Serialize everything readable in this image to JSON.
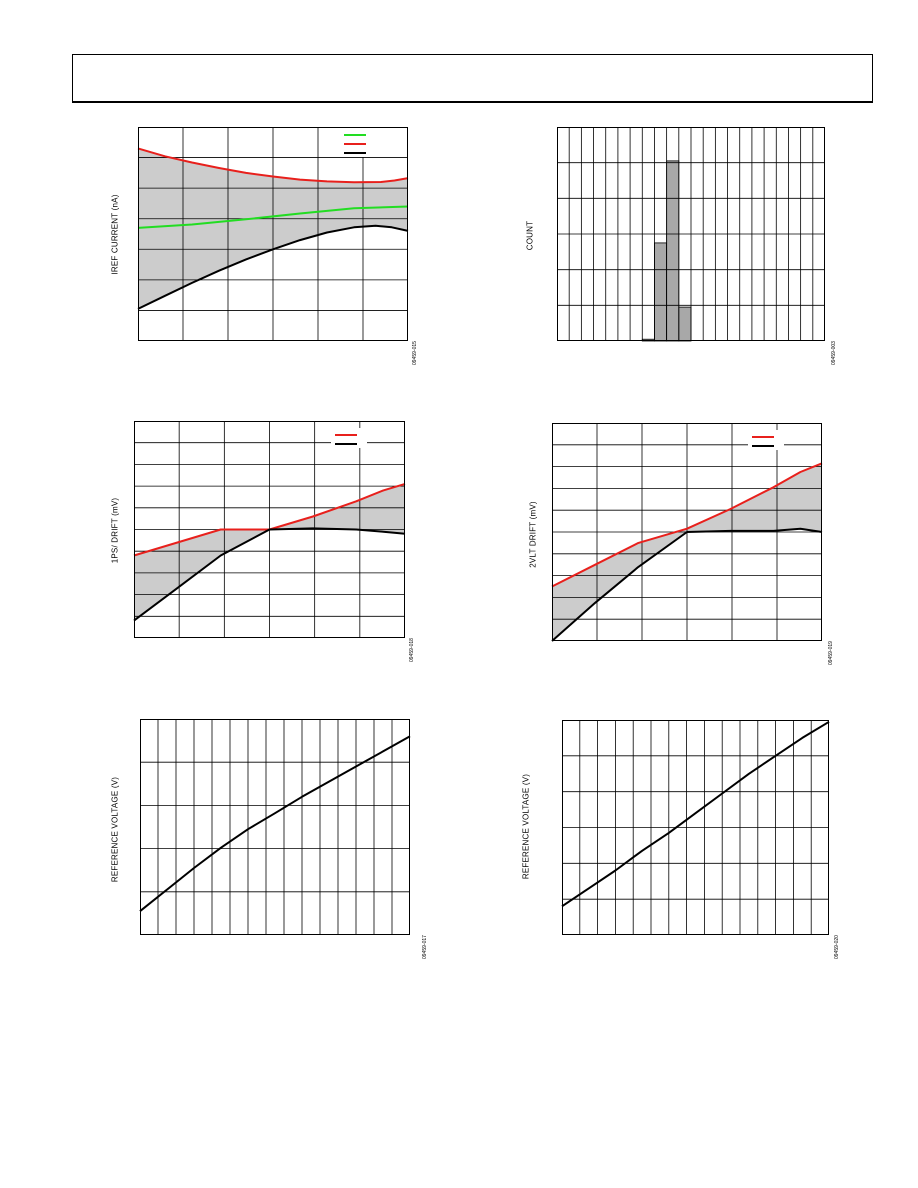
{
  "colors": {
    "red": "#e8201c",
    "green": "#22dd22",
    "black": "#000000",
    "band": "#cccccc",
    "bar": "#a8a8a8"
  },
  "chart_data": [
    {
      "type": "line",
      "ylabel": "IREF CURRENT (nA)",
      "figure_id": "09459-015",
      "legend": {
        "placement": "top-right",
        "series_colors": [
          "green",
          "red",
          "black"
        ]
      },
      "xlim": [
        0,
        1
      ],
      "ylim": [
        0,
        7
      ],
      "grid": {
        "x_divisions": 6,
        "y_divisions": 7
      },
      "fill_between": [
        1,
        2
      ],
      "series": [
        {
          "color": "green",
          "x": [
            0,
            0.2,
            0.4,
            0.6,
            0.8,
            1.0
          ],
          "y": [
            3.7,
            3.81,
            3.98,
            4.17,
            4.34,
            4.4
          ]
        },
        {
          "color": "red",
          "x": [
            0,
            0.1,
            0.2,
            0.3,
            0.4,
            0.5,
            0.6,
            0.7,
            0.8,
            0.9,
            0.95,
            1.0
          ],
          "y": [
            6.3,
            6.04,
            5.84,
            5.66,
            5.5,
            5.38,
            5.28,
            5.22,
            5.19,
            5.2,
            5.25,
            5.33
          ]
        },
        {
          "color": "black",
          "x": [
            0,
            0.1,
            0.2,
            0.3,
            0.4,
            0.5,
            0.6,
            0.7,
            0.8,
            0.88,
            0.94,
            1.0
          ],
          "y": [
            1.05,
            1.48,
            1.9,
            2.3,
            2.67,
            3.0,
            3.3,
            3.55,
            3.72,
            3.77,
            3.72,
            3.6
          ]
        }
      ]
    },
    {
      "type": "bar",
      "ylabel": "COUNT",
      "figure_id": "09459-003",
      "xlim": [
        0,
        22
      ],
      "ylim": [
        0,
        6
      ],
      "grid": {
        "x_divisions": 22,
        "y_divisions": 6
      },
      "bins": [
        7,
        8,
        9,
        10
      ],
      "values": [
        0.05,
        2.75,
        5.05,
        0.95
      ]
    },
    {
      "type": "line",
      "ylabel": "1PS/ DRIFT (mV)",
      "figure_id": "09459-018",
      "legend": {
        "placement": "top-right",
        "series_colors": [
          "red",
          "black"
        ]
      },
      "xlim": [
        0,
        1
      ],
      "ylim": [
        0,
        10
      ],
      "grid": {
        "x_divisions": 6,
        "y_divisions": 10
      },
      "fill_between": [
        0,
        1
      ],
      "series": [
        {
          "color": "red",
          "x": [
            0,
            0.16,
            0.32,
            0.5,
            0.66,
            0.82,
            0.92,
            1.0
          ],
          "y": [
            3.8,
            4.4,
            5.0,
            5.0,
            5.6,
            6.3,
            6.8,
            7.1
          ]
        },
        {
          "color": "black",
          "x": [
            0,
            0.16,
            0.32,
            0.5,
            0.66,
            0.82,
            0.92,
            1.0
          ],
          "y": [
            0.8,
            2.3,
            3.8,
            5.0,
            5.05,
            5.0,
            4.9,
            4.8
          ]
        }
      ]
    },
    {
      "type": "line",
      "ylabel": "2VLT DRIFT (mV)",
      "figure_id": "09459-019",
      "legend": {
        "placement": "top-right",
        "series_colors": [
          "red",
          "black"
        ]
      },
      "xlim": [
        0,
        1
      ],
      "ylim": [
        0,
        10
      ],
      "grid": {
        "x_divisions": 6,
        "y_divisions": 10
      },
      "fill_between": [
        0,
        1
      ],
      "series": [
        {
          "color": "red",
          "x": [
            0,
            0.16,
            0.32,
            0.5,
            0.66,
            0.82,
            0.92,
            1.0
          ],
          "y": [
            2.5,
            3.5,
            4.5,
            5.15,
            6.05,
            7.05,
            7.75,
            8.15
          ]
        },
        {
          "color": "black",
          "x": [
            0,
            0.16,
            0.32,
            0.5,
            0.66,
            0.82,
            0.92,
            1.0
          ],
          "y": [
            0.0,
            1.75,
            3.4,
            5.0,
            5.05,
            5.05,
            5.15,
            5.0
          ]
        }
      ]
    },
    {
      "type": "line",
      "ylabel": "REFERENCE VOLTAGE (V)",
      "figure_id": "09459-017",
      "xlim": [
        0,
        1
      ],
      "ylim": [
        0,
        5
      ],
      "grid": {
        "x_divisions": 15,
        "y_divisions": 5
      },
      "series": [
        {
          "color": "black",
          "x": [
            0,
            0.1,
            0.2,
            0.3,
            0.4,
            0.5,
            0.6,
            0.7,
            0.8,
            0.9,
            1.0
          ],
          "y": [
            0.55,
            1.05,
            1.55,
            2.02,
            2.45,
            2.82,
            3.2,
            3.55,
            3.9,
            4.25,
            4.6
          ]
        }
      ]
    },
    {
      "type": "line",
      "ylabel": "REFERENCE VOLTAGE (V)",
      "figure_id": "09459-020",
      "xlim": [
        0,
        1
      ],
      "ylim": [
        0,
        6
      ],
      "grid": {
        "x_divisions": 15,
        "y_divisions": 6
      },
      "series": [
        {
          "color": "black",
          "x": [
            0,
            0.1,
            0.2,
            0.3,
            0.4,
            0.5,
            0.6,
            0.7,
            0.8,
            0.9,
            1.0
          ],
          "y": [
            0.8,
            1.3,
            1.8,
            2.35,
            2.85,
            3.4,
            3.95,
            4.5,
            5.0,
            5.5,
            5.95
          ]
        }
      ]
    }
  ]
}
